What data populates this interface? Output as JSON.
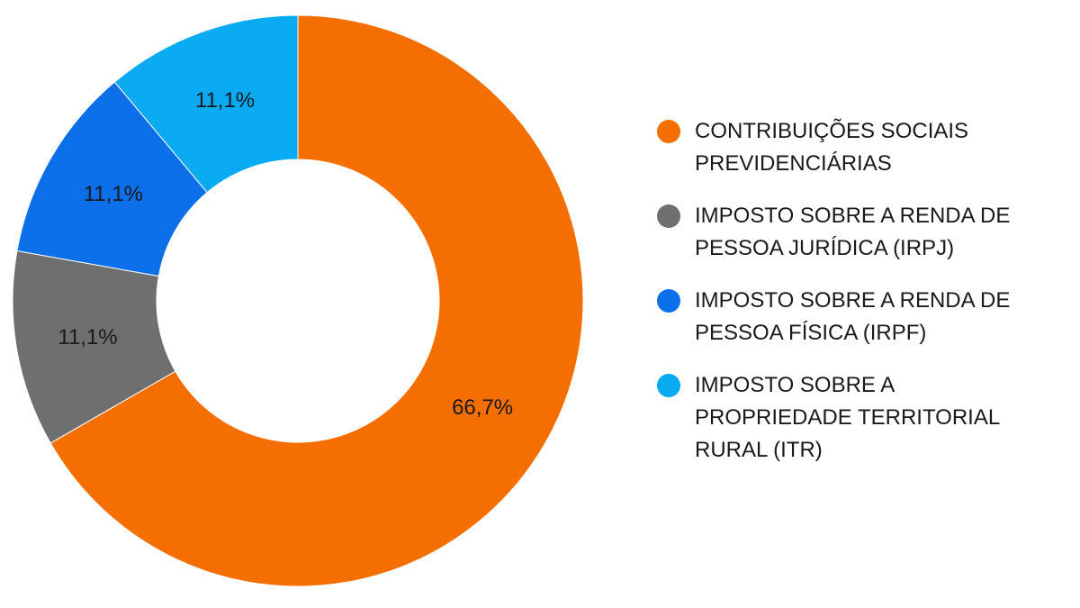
{
  "chart_data": {
    "type": "pie",
    "donut": true,
    "slices": [
      {
        "name": "CONTRIBUIÇÕES SOCIAIS PREVIDENCIÁRIAS",
        "value": 66.7,
        "label": "66,7%",
        "color": "#f56e00"
      },
      {
        "name": "IMPOSTO SOBRE A RENDA DE PESSOA JURÍDICA (IRPJ)",
        "value": 11.1,
        "label": "11,1%",
        "color": "#6f6f6f"
      },
      {
        "name": "IMPOSTO SOBRE A RENDA DE PESSOA FÍSICA (IRPF)",
        "value": 11.1,
        "label": "11,1%",
        "color": "#0a6fe8"
      },
      {
        "name": "IMPOSTO SOBRE A PROPRIEDADE TERRITORIAL RURAL (ITR)",
        "value": 11.1,
        "label": "11,1%",
        "color": "#0aaaf2"
      }
    ],
    "direction": "clockwise",
    "start": "top",
    "legend_position": "right"
  }
}
